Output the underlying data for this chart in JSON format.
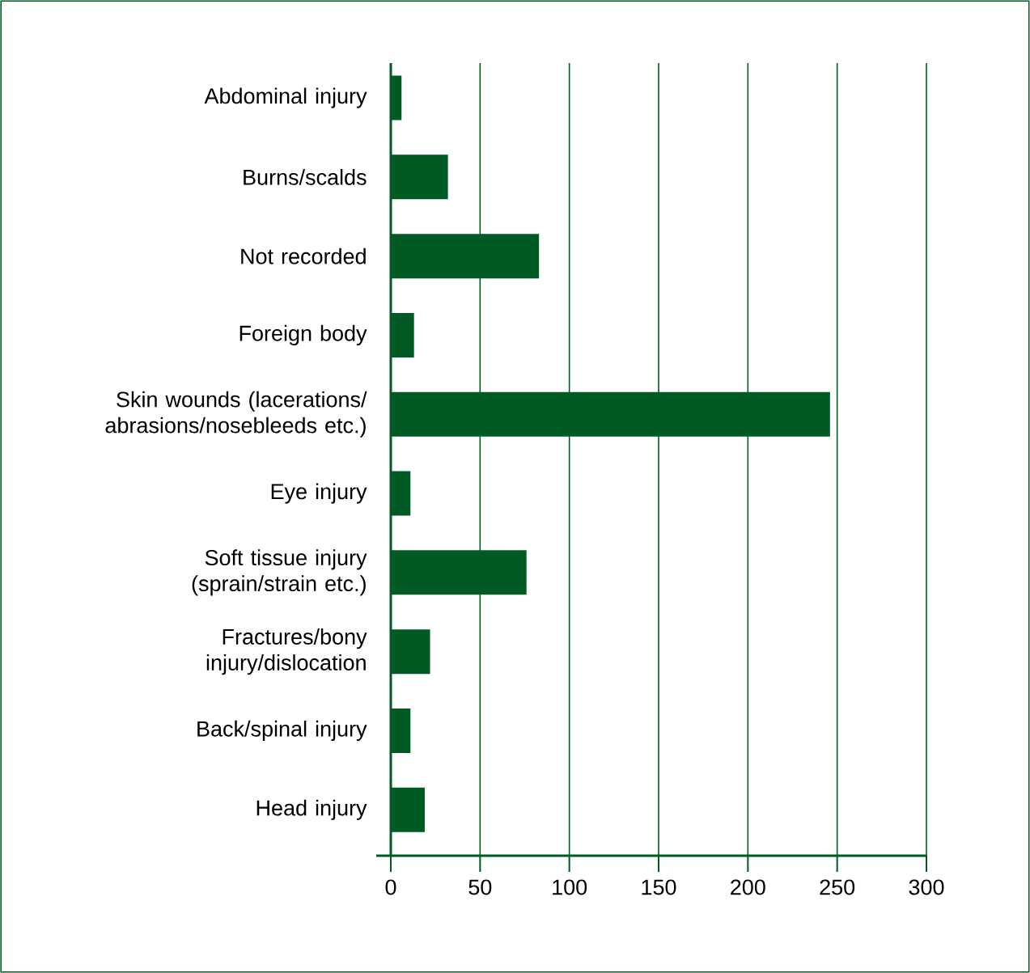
{
  "chart_data": {
    "type": "bar",
    "orientation": "horizontal",
    "categories": [
      "Abdominal injury",
      "Burns/scalds",
      "Not recorded",
      "Foreign body",
      "Skin wounds (lacerations/ abrasions/nosebleeds etc.)",
      "Eye injury",
      "Soft tissue injury (sprain/strain etc.)",
      "Fractures/bony injury/dislocation",
      "Back/spinal injury",
      "Head injury"
    ],
    "values": [
      6,
      32,
      83,
      13,
      246,
      11,
      76,
      22,
      11,
      19
    ],
    "color": "#005a24",
    "xlim": [
      0,
      300
    ],
    "xticks": [
      0,
      50,
      100,
      150,
      200,
      250,
      300
    ],
    "grid": "x"
  }
}
